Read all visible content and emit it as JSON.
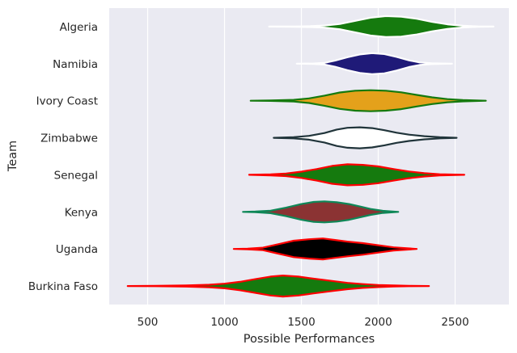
{
  "chart_data": {
    "type": "violin",
    "orientation": "horizontal",
    "xlabel": "Possible Performances",
    "ylabel": "Team",
    "xlim": [
      250,
      2850
    ],
    "xticks": [
      500,
      1000,
      1500,
      2000,
      2500
    ],
    "grid": true,
    "background": "#eaeaf2",
    "series": [
      {
        "name": "Algeria",
        "min": 1290,
        "max": 2750,
        "fill": "#157a0e",
        "edge": "#ffffff",
        "profile": [
          [
            1290,
            0.0
          ],
          [
            1450,
            0.01
          ],
          [
            1560,
            0.04
          ],
          [
            1650,
            0.1
          ],
          [
            1750,
            0.25
          ],
          [
            1850,
            0.55
          ],
          [
            1950,
            0.85
          ],
          [
            2050,
            1.0
          ],
          [
            2150,
            0.95
          ],
          [
            2250,
            0.75
          ],
          [
            2350,
            0.45
          ],
          [
            2450,
            0.22
          ],
          [
            2550,
            0.08
          ],
          [
            2650,
            0.02
          ],
          [
            2750,
            0.0
          ]
        ]
      },
      {
        "name": "Namibia",
        "min": 1470,
        "max": 2480,
        "fill": "#1f1a78",
        "edge": "#ffffff",
        "profile": [
          [
            1470,
            0.0
          ],
          [
            1580,
            0.02
          ],
          [
            1650,
            0.08
          ],
          [
            1720,
            0.3
          ],
          [
            1800,
            0.62
          ],
          [
            1880,
            0.88
          ],
          [
            1960,
            1.0
          ],
          [
            2040,
            0.92
          ],
          [
            2120,
            0.65
          ],
          [
            2200,
            0.32
          ],
          [
            2270,
            0.12
          ],
          [
            2350,
            0.04
          ],
          [
            2480,
            0.0
          ]
        ]
      },
      {
        "name": "Ivory Coast",
        "min": 1170,
        "max": 2700,
        "fill": "#e4a11b",
        "edge": "#157a0e",
        "profile": [
          [
            1170,
            0.0
          ],
          [
            1300,
            0.02
          ],
          [
            1450,
            0.08
          ],
          [
            1550,
            0.22
          ],
          [
            1650,
            0.48
          ],
          [
            1750,
            0.78
          ],
          [
            1850,
            0.95
          ],
          [
            1950,
            1.0
          ],
          [
            2050,
            0.95
          ],
          [
            2150,
            0.8
          ],
          [
            2250,
            0.55
          ],
          [
            2350,
            0.32
          ],
          [
            2450,
            0.15
          ],
          [
            2550,
            0.06
          ],
          [
            2700,
            0.0
          ]
        ]
      },
      {
        "name": "Zimbabwe",
        "min": 1320,
        "max": 2510,
        "fill": "#ffffff",
        "edge": "#20343a",
        "profile": [
          [
            1320,
            0.0
          ],
          [
            1450,
            0.06
          ],
          [
            1550,
            0.18
          ],
          [
            1650,
            0.45
          ],
          [
            1730,
            0.78
          ],
          [
            1800,
            0.95
          ],
          [
            1880,
            1.0
          ],
          [
            1960,
            0.92
          ],
          [
            2040,
            0.72
          ],
          [
            2120,
            0.48
          ],
          [
            2200,
            0.3
          ],
          [
            2300,
            0.15
          ],
          [
            2400,
            0.06
          ],
          [
            2510,
            0.0
          ]
        ]
      },
      {
        "name": "Senegal",
        "min": 1160,
        "max": 2560,
        "fill": "#157a0e",
        "edge": "#ff0000",
        "profile": [
          [
            1160,
            0.0
          ],
          [
            1300,
            0.05
          ],
          [
            1400,
            0.12
          ],
          [
            1500,
            0.3
          ],
          [
            1600,
            0.55
          ],
          [
            1700,
            0.85
          ],
          [
            1800,
            1.0
          ],
          [
            1900,
            0.95
          ],
          [
            2000,
            0.8
          ],
          [
            2100,
            0.55
          ],
          [
            2200,
            0.32
          ],
          [
            2300,
            0.16
          ],
          [
            2400,
            0.06
          ],
          [
            2560,
            0.0
          ]
        ]
      },
      {
        "name": "Kenya",
        "min": 1120,
        "max": 2130,
        "fill": "#8b3333",
        "edge": "#0e8757",
        "profile": [
          [
            1120,
            0.0
          ],
          [
            1200,
            0.03
          ],
          [
            1300,
            0.12
          ],
          [
            1400,
            0.4
          ],
          [
            1500,
            0.75
          ],
          [
            1580,
            0.95
          ],
          [
            1650,
            1.0
          ],
          [
            1730,
            0.92
          ],
          [
            1810,
            0.75
          ],
          [
            1880,
            0.52
          ],
          [
            1950,
            0.28
          ],
          [
            2030,
            0.1
          ],
          [
            2130,
            0.0
          ]
        ]
      },
      {
        "name": "Uganda",
        "min": 1060,
        "max": 2250,
        "fill": "#000000",
        "edge": "#ff0000",
        "profile": [
          [
            1060,
            0.0
          ],
          [
            1150,
            0.03
          ],
          [
            1250,
            0.12
          ],
          [
            1350,
            0.45
          ],
          [
            1450,
            0.78
          ],
          [
            1550,
            0.92
          ],
          [
            1640,
            1.0
          ],
          [
            1720,
            0.85
          ],
          [
            1800,
            0.7
          ],
          [
            1900,
            0.55
          ],
          [
            2000,
            0.35
          ],
          [
            2100,
            0.15
          ],
          [
            2250,
            0.0
          ]
        ]
      },
      {
        "name": "Burkina Faso",
        "min": 370,
        "max": 2330,
        "fill": "#157a0e",
        "edge": "#ff0000",
        "profile": [
          [
            370,
            0.0
          ],
          [
            550,
            0.02
          ],
          [
            750,
            0.06
          ],
          [
            900,
            0.12
          ],
          [
            1000,
            0.22
          ],
          [
            1100,
            0.4
          ],
          [
            1200,
            0.65
          ],
          [
            1300,
            0.9
          ],
          [
            1380,
            1.0
          ],
          [
            1480,
            0.9
          ],
          [
            1580,
            0.7
          ],
          [
            1700,
            0.48
          ],
          [
            1800,
            0.3
          ],
          [
            1900,
            0.18
          ],
          [
            2000,
            0.1
          ],
          [
            2100,
            0.05
          ],
          [
            2200,
            0.02
          ],
          [
            2330,
            0.0
          ]
        ]
      }
    ]
  }
}
